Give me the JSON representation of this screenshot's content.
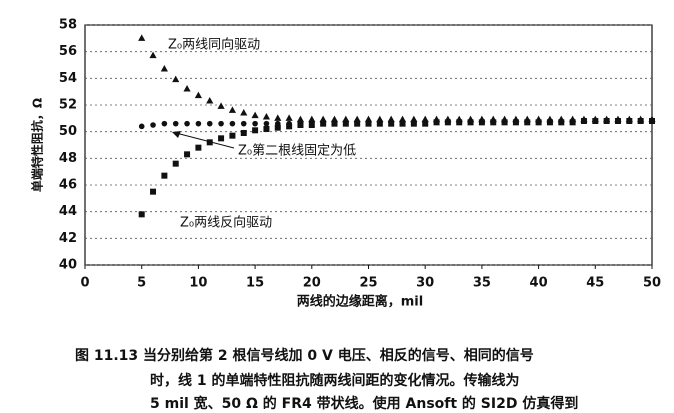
{
  "chart_data": {
    "type": "scatter",
    "x_label": "两线的边缘距离，mil",
    "y_label": "单端特性阻抗，Ω",
    "xlim": [
      0,
      50
    ],
    "xticks": [
      0,
      5,
      10,
      15,
      20,
      25,
      30,
      35,
      40,
      45,
      50
    ],
    "ylim": [
      40,
      58
    ],
    "yticks": [
      40,
      42,
      44,
      46,
      48,
      50,
      52,
      54,
      56,
      58
    ],
    "grid": true,
    "x": [
      5,
      6,
      7,
      8,
      9,
      10,
      11,
      12,
      13,
      14,
      15,
      16,
      17,
      18,
      19,
      20,
      21,
      22,
      23,
      24,
      25,
      26,
      27,
      28,
      29,
      30,
      31,
      32,
      33,
      34,
      35,
      36,
      37,
      38,
      39,
      40,
      41,
      42,
      43,
      44,
      45,
      46,
      47,
      48,
      49,
      50
    ],
    "series": [
      {
        "name": "Z₀两线同向驱动",
        "marker": "triangle",
        "color": "#111111",
        "values": [
          57,
          55.7,
          54.7,
          53.9,
          53.2,
          52.7,
          52.3,
          51.9,
          51.6,
          51.4,
          51.2,
          51.1,
          51.0,
          51.0,
          50.9,
          50.9,
          50.9,
          50.9,
          50.9,
          50.9,
          50.9,
          50.9,
          50.9,
          50.9,
          50.9,
          50.9,
          50.9,
          50.9,
          50.9,
          50.9,
          50.9,
          50.9,
          50.9,
          50.9,
          50.9,
          50.9,
          50.9,
          50.9,
          50.9,
          50.9,
          50.9,
          50.9,
          50.9,
          50.9,
          50.9,
          50.9
        ]
      },
      {
        "name": "Z₀第二根线固定为低",
        "marker": "circle",
        "color": "#111111",
        "values": [
          50.4,
          50.5,
          50.6,
          50.6,
          50.6,
          50.6,
          50.6,
          50.6,
          50.6,
          50.6,
          50.6,
          50.6,
          50.6,
          50.6,
          50.6,
          50.7,
          50.7,
          50.7,
          50.7,
          50.7,
          50.7,
          50.7,
          50.7,
          50.7,
          50.7,
          50.7,
          50.7,
          50.7,
          50.7,
          50.7,
          50.7,
          50.7,
          50.7,
          50.7,
          50.7,
          50.7,
          50.8,
          50.8,
          50.8,
          50.8,
          50.8,
          50.8,
          50.8,
          50.8,
          50.8,
          50.8
        ]
      },
      {
        "name": "Z₀两线反向驱动",
        "marker": "square",
        "color": "#111111",
        "values": [
          43.8,
          45.5,
          46.7,
          47.6,
          48.3,
          48.8,
          49.2,
          49.5,
          49.7,
          49.9,
          50.1,
          50.2,
          50.3,
          50.4,
          50.5,
          50.5,
          50.6,
          50.6,
          50.6,
          50.6,
          50.6,
          50.6,
          50.6,
          50.6,
          50.6,
          50.6,
          50.7,
          50.7,
          50.7,
          50.7,
          50.7,
          50.7,
          50.7,
          50.7,
          50.7,
          50.7,
          50.7,
          50.7,
          50.7,
          50.8,
          50.8,
          50.8,
          50.8,
          50.8,
          50.8,
          50.8
        ]
      }
    ]
  },
  "caption": [
    "图 11.13    当分别给第 2 根信号线加 0 V 电压、相反的信号、相同的信号",
    "时，线 1 的单端特性阻抗随两线间距的变化情况。传输线为",
    "5 mil 宽、50 Ω 的 FR4 带状线。使用 Ansoft 的 SI2D 仿真得到"
  ]
}
